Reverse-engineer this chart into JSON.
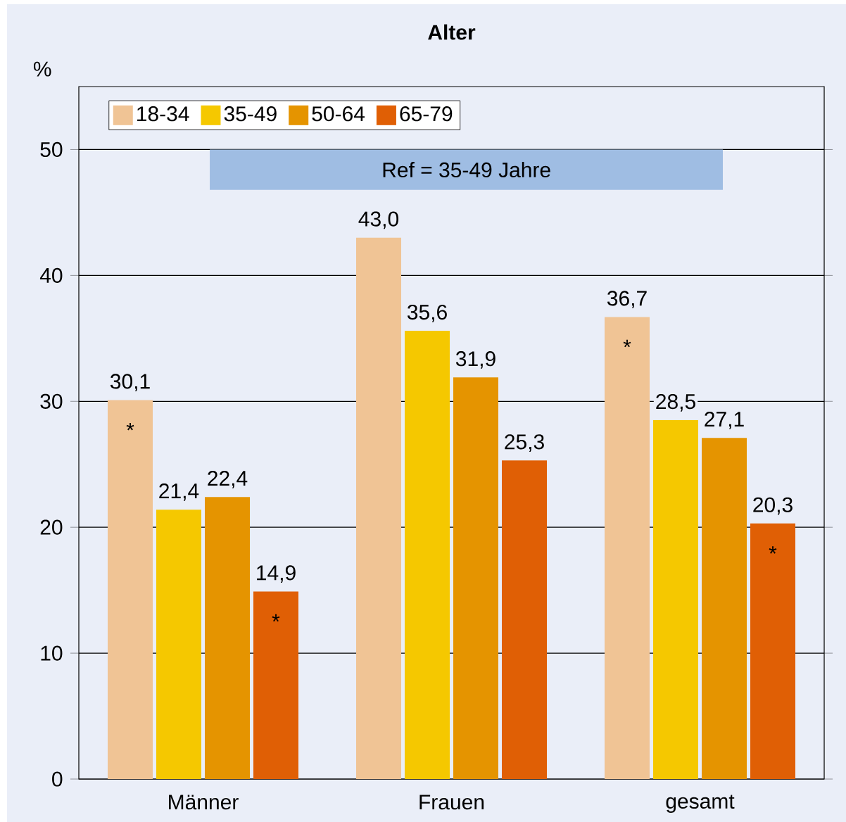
{
  "chart_data": {
    "type": "bar",
    "title": "Alter",
    "ylabel": "%",
    "categories": [
      "Männer",
      "Frauen",
      "gesamt"
    ],
    "series": [
      {
        "name": "18-34",
        "color": "#f0c495",
        "values": [
          30.1,
          43.0,
          36.7
        ],
        "value_labels": [
          "30,1",
          "43,0",
          "36,7"
        ]
      },
      {
        "name": "35-49",
        "color": "#f5c800",
        "values": [
          21.4,
          35.6,
          28.5
        ],
        "value_labels": [
          "21,4",
          "35,6",
          "28,5"
        ]
      },
      {
        "name": "50-64",
        "color": "#e59400",
        "values": [
          22.4,
          31.9,
          27.1
        ],
        "value_labels": [
          "22,4",
          "31,9",
          "27,1"
        ]
      },
      {
        "name": "65-79",
        "color": "#e05f05",
        "values": [
          14.9,
          25.3,
          20.3
        ],
        "value_labels": [
          "14,9",
          "25,3",
          "20,3"
        ]
      }
    ],
    "ylim": [
      0,
      55
    ],
    "yticks": [
      0,
      10,
      20,
      30,
      40,
      50
    ],
    "grid": "y",
    "legend": "top left",
    "bands": [
      {
        "axis": "y",
        "from": 46.8,
        "to": 50,
        "label": "Ref = 35-49 Jahre",
        "color": "#9fbde3"
      }
    ],
    "annotations": [
      "*",
      "*",
      "*",
      "*"
    ]
  }
}
